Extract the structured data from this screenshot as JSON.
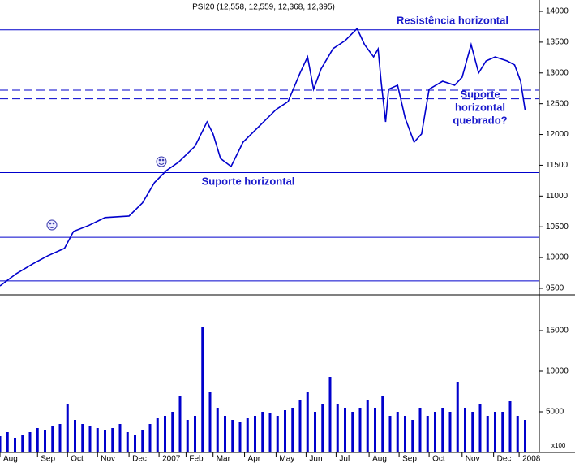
{
  "chart_data": [
    {
      "type": "line",
      "title": "PSI20 (12,558, 12,559, 12,368, 12,395)",
      "annotations": [
        "Resistência horizontal",
        "Suporte horizontal",
        [
          "Suporte",
          "horizontal",
          "quebrado?"
        ]
      ],
      "x": [
        0,
        11,
        22,
        32,
        43,
        49,
        59,
        70,
        86,
        95,
        103,
        111,
        119,
        130,
        138,
        142,
        147,
        154,
        162,
        173,
        184,
        192,
        200,
        205,
        209,
        214,
        222,
        230,
        238,
        243,
        249,
        252,
        254,
        257,
        259,
        265,
        270,
        276,
        281,
        286,
        295,
        303,
        308,
        314,
        319,
        324,
        330,
        338,
        343,
        347,
        350
      ],
      "series": [
        {
          "name": "PSI20",
          "color": "#0000cc",
          "values": [
            9540,
            9740,
            9900,
            10030,
            10150,
            10425,
            10520,
            10650,
            10675,
            10890,
            11220,
            11415,
            11550,
            11810,
            12205,
            12010,
            11610,
            11480,
            11875,
            12140,
            12405,
            12535,
            13000,
            13260,
            12735,
            13065,
            13395,
            13525,
            13720,
            13460,
            13260,
            13390,
            12865,
            12205,
            12735,
            12800,
            12270,
            11875,
            12010,
            12735,
            12865,
            12800,
            12930,
            13460,
            13000,
            13195,
            13260,
            13195,
            13130,
            12865,
            12395
          ]
        }
      ],
      "reference_lines": [
        {
          "value": 13700,
          "dashed": false
        },
        {
          "value": 12720,
          "dashed": true
        },
        {
          "value": 12580,
          "dashed": true
        },
        {
          "value": 11380,
          "dashed": false
        },
        {
          "value": 10330,
          "dashed": false
        },
        {
          "value": 9620,
          "dashed": false
        }
      ],
      "reference_color": "#0000cc",
      "xlim": [
        0,
        360
      ],
      "ylim": [
        9394,
        14185
      ],
      "yticks": [
        9500,
        10000,
        10500,
        11000,
        11500,
        12000,
        12500,
        13000,
        13500,
        14000
      ]
    },
    {
      "type": "bar",
      "unit_label": "x100",
      "color": "#0000cc",
      "x": [
        0,
        5,
        10,
        15,
        20,
        25,
        30,
        35,
        40,
        45,
        50,
        55,
        60,
        65,
        70,
        75,
        80,
        85,
        90,
        95,
        100,
        105,
        110,
        115,
        120,
        125,
        130,
        135,
        140,
        145,
        150,
        155,
        160,
        165,
        170,
        175,
        180,
        185,
        190,
        195,
        200,
        205,
        210,
        215,
        220,
        225,
        230,
        235,
        240,
        245,
        250,
        255,
        260,
        265,
        270,
        275,
        280,
        285,
        290,
        295,
        300,
        305,
        310,
        315,
        320,
        325,
        330,
        335,
        340,
        345,
        350
      ],
      "values": [
        2000,
        2500,
        1800,
        2200,
        2500,
        3000,
        2800,
        3200,
        3500,
        6000,
        4000,
        3500,
        3200,
        3000,
        2800,
        3000,
        3500,
        2500,
        2200,
        2800,
        3500,
        4200,
        4500,
        5000,
        7000,
        4000,
        4500,
        15500,
        7500,
        5500,
        4500,
        4000,
        3800,
        4200,
        4500,
        5000,
        4800,
        4500,
        5200,
        5500,
        6500,
        7500,
        5000,
        6000,
        9300,
        6000,
        5500,
        5000,
        5500,
        6500,
        5500,
        7000,
        4500,
        5000,
        4500,
        4000,
        5500,
        4500,
        5000,
        5500,
        5000,
        8700,
        5500,
        5000,
        6000,
        4500,
        5000,
        5000,
        6300,
        4500,
        4000
      ],
      "xlim": [
        0,
        360
      ],
      "xticks": [
        {
          "value": 0,
          "label": "Aug"
        },
        {
          "value": 25,
          "label": "Sep"
        },
        {
          "value": 45,
          "label": "Oct"
        },
        {
          "value": 65,
          "label": "Nov"
        },
        {
          "value": 86,
          "label": "Dec"
        },
        {
          "value": 106,
          "label": "2007"
        },
        {
          "value": 124,
          "label": "Feb"
        },
        {
          "value": 142,
          "label": "Mar"
        },
        {
          "value": 163,
          "label": "Apr"
        },
        {
          "value": 184,
          "label": "May"
        },
        {
          "value": 204,
          "label": "Jun"
        },
        {
          "value": 224,
          "label": "Jul"
        },
        {
          "value": 246,
          "label": "Aug"
        },
        {
          "value": 266,
          "label": "Sep"
        },
        {
          "value": 286,
          "label": "Oct"
        },
        {
          "value": 308,
          "label": "Nov"
        },
        {
          "value": 329,
          "label": "Dec"
        },
        {
          "value": 346,
          "label": "2008"
        }
      ],
      "ylim": [
        0,
        19400
      ],
      "yticks": [
        5000,
        10000,
        15000
      ]
    }
  ]
}
